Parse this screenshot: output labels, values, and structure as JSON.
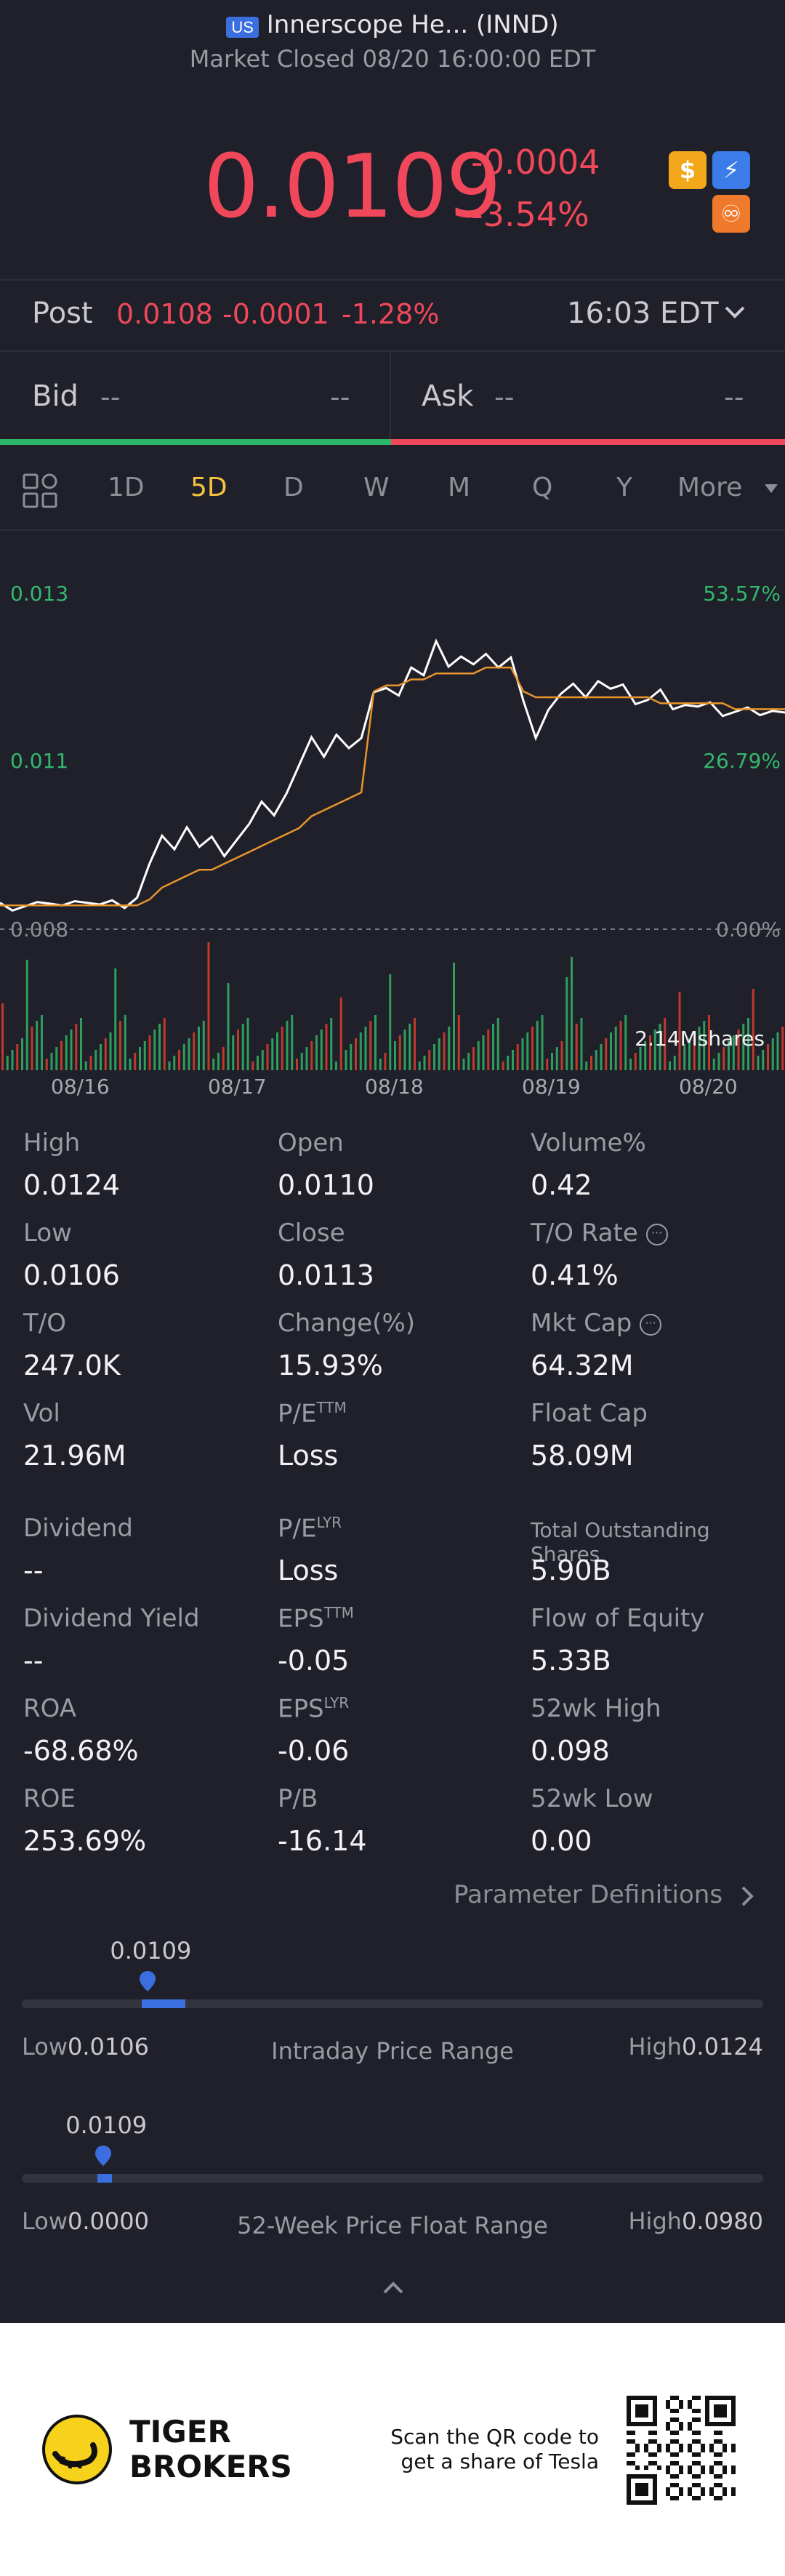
{
  "header": {
    "region_badge": "US",
    "title": "Innerscope He... (INND)",
    "status": "Market Closed 08/20 16:00:00 EDT",
    "price": "0.0109",
    "change": "-0.0004",
    "change_pct": "-3.54%",
    "icons": [
      "dollar-icon",
      "lightning-icon",
      "options-icon"
    ]
  },
  "post": {
    "label": "Post",
    "price": "0.0108",
    "change": "-0.0001",
    "change_pct": "-1.28%",
    "time": "16:03 EDT"
  },
  "quote": {
    "bid_label": "Bid",
    "bid_price": "--",
    "bid_size": "--",
    "ask_label": "Ask",
    "ask_price": "--",
    "ask_size": "--"
  },
  "tabs": [
    "1D",
    "5D",
    "D",
    "W",
    "M",
    "Q",
    "Y",
    "More"
  ],
  "active_tab": "5D",
  "chart_data": {
    "type": "line",
    "y_left_ticks": [
      "0.013",
      "0.011",
      "0.008"
    ],
    "y_right_ticks": [
      "53.57%",
      "26.79%",
      "0.00%"
    ],
    "x_ticks": [
      "08/16",
      "08/17",
      "08/18",
      "08/19",
      "08/20"
    ],
    "volume_label": "2.14Mshares",
    "series": [
      {
        "values": [
          0.0084,
          0.0083,
          0.0084,
          0.0085,
          0.0084,
          0.0084,
          0.0085,
          0.0084,
          0.0084,
          0.0085,
          0.0084,
          0.0085,
          0.0091,
          0.0096,
          0.0093,
          0.0097,
          0.0094,
          0.0096,
          0.0092,
          0.0095,
          0.0098,
          0.0101,
          0.0099,
          0.0103,
          0.0108,
          0.0112,
          0.0109,
          0.0113,
          0.011,
          0.0112,
          0.012,
          0.0121,
          0.0119,
          0.0124,
          0.0123,
          0.0128,
          0.0124,
          0.0126,
          0.0125,
          0.0126,
          0.0124,
          0.0126,
          0.0118,
          0.0112,
          0.0117,
          0.012,
          0.0121,
          0.0119,
          0.0122,
          0.012,
          0.0121,
          0.0118,
          0.0119,
          0.012,
          0.0117,
          0.0118,
          0.0117,
          0.0118,
          0.0116,
          0.0117,
          0.0117,
          0.0116,
          0.0117,
          0.0116
        ]
      },
      {
        "values": [
          0.0084,
          0.0084,
          0.0084,
          0.0084,
          0.0084,
          0.0084,
          0.0084,
          0.0084,
          0.0084,
          0.0084,
          0.0084,
          0.0084,
          0.0085,
          0.0087,
          0.0088,
          0.0089,
          0.009,
          0.009,
          0.0091,
          0.0092,
          0.0093,
          0.0094,
          0.0095,
          0.0096,
          0.0097,
          0.0099,
          0.01,
          0.0101,
          0.0102,
          0.0103,
          0.012,
          0.0121,
          0.0121,
          0.0122,
          0.0122,
          0.0123,
          0.0123,
          0.0123,
          0.0123,
          0.0124,
          0.0124,
          0.0124,
          0.012,
          0.0119,
          0.0119,
          0.0119,
          0.0119,
          0.0119,
          0.0119,
          0.0119,
          0.0119,
          0.0119,
          0.0119,
          0.0118,
          0.0118,
          0.0118,
          0.0118,
          0.0118,
          0.0118,
          0.0117,
          0.0117,
          0.0117,
          0.0117,
          0.0117
        ]
      }
    ],
    "ylim": [
      0.008,
      0.0136
    ]
  },
  "stats": [
    {
      "label": "High",
      "value": "0.0124"
    },
    {
      "label": "Open",
      "value": "0.0110"
    },
    {
      "label": "Volume%",
      "value": "0.42"
    },
    {
      "label": "Low",
      "value": "0.0106"
    },
    {
      "label": "Close",
      "value": "0.0113"
    },
    {
      "label": "T/O Rate",
      "value": "0.41%"
    },
    {
      "label": "T/O",
      "value": "247.0K"
    },
    {
      "label": "Change(%)",
      "value": "15.93%"
    },
    {
      "label": "Mkt Cap",
      "value": "64.32M"
    },
    {
      "label": "Vol",
      "value": "21.96M"
    },
    {
      "label": "P/E",
      "sup": "TTM",
      "value": "Loss"
    },
    {
      "label": "Float Cap",
      "value": "58.09M"
    },
    {
      "label": "Dividend",
      "value": "--"
    },
    {
      "label": "P/E",
      "sup": "LYR",
      "value": "Loss"
    },
    {
      "label": "Total Outstanding Shares",
      "value": "5.90B"
    },
    {
      "label": "Dividend Yield",
      "value": "--"
    },
    {
      "label": "EPS",
      "sup": "TTM",
      "value": "-0.05"
    },
    {
      "label": "Flow of Equity",
      "value": "5.33B"
    },
    {
      "label": "ROA",
      "value": "-68.68%"
    },
    {
      "label": "EPS",
      "sup": "LYR",
      "value": "-0.06"
    },
    {
      "label": "52wk High",
      "value": "0.098"
    },
    {
      "label": "ROE",
      "value": "253.69%"
    },
    {
      "label": "P/B",
      "value": "-16.14"
    },
    {
      "label": "52wk Low",
      "value": "0.00"
    }
  ],
  "param_link": "Parameter Definitions",
  "intraday": {
    "current": "0.0109",
    "low_label": "Low",
    "low": "0.0106",
    "high_label": "High",
    "high": "0.0124",
    "title": "Intraday Price Range",
    "position_fraction": 0.17
  },
  "week52": {
    "current": "0.0109",
    "low_label": "Low",
    "low": "0.0000",
    "high_label": "High",
    "high": "0.0980",
    "title": "52-Week Price Float Range",
    "position_fraction": 0.11
  },
  "footer": {
    "brand_line1": "TIGER",
    "brand_line2": "BROKERS",
    "scan_line1": "Scan the QR code to",
    "scan_line2": "get a share of Tesla"
  },
  "colors": {
    "up": "#33b86e",
    "down": "#f0485a",
    "accent": "#f5c242",
    "blue": "#3b6fe0",
    "avg_line": "#e8952c"
  }
}
